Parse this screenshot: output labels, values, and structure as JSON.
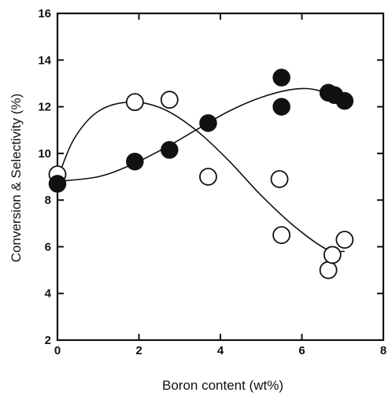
{
  "chart_data": {
    "type": "scatter",
    "title": "",
    "xlabel": "Boron content (wt%)",
    "ylabel": "Conversion & Selectivity (%)",
    "xlim": [
      0,
      8
    ],
    "ylim": [
      2,
      16
    ],
    "xticks": [
      "0",
      "2",
      "4",
      "6",
      "8"
    ],
    "yticks": [
      "2",
      "4",
      "6",
      "8",
      "10",
      "12",
      "14",
      "16"
    ],
    "grid": false,
    "legend": "none",
    "series": [
      {
        "marker": "open-circle",
        "color": "#111111",
        "points": [
          [
            0.0,
            9.1
          ],
          [
            1.9,
            12.2
          ],
          [
            2.75,
            12.3
          ],
          [
            3.7,
            9.0
          ],
          [
            5.45,
            8.9
          ],
          [
            5.5,
            6.5
          ],
          [
            6.65,
            5.0
          ],
          [
            6.75,
            5.65
          ],
          [
            7.05,
            6.3
          ]
        ],
        "fit_curve": [
          [
            0.0,
            8.9
          ],
          [
            0.4,
            10.6
          ],
          [
            1.0,
            11.8
          ],
          [
            1.8,
            12.2
          ],
          [
            2.6,
            11.9
          ],
          [
            3.4,
            11.0
          ],
          [
            4.2,
            9.7
          ],
          [
            5.0,
            8.2
          ],
          [
            5.8,
            6.9
          ],
          [
            6.6,
            5.9
          ],
          [
            7.05,
            5.8
          ]
        ]
      },
      {
        "marker": "filled-circle",
        "color": "#111111",
        "points": [
          [
            0.0,
            8.7
          ],
          [
            1.9,
            9.65
          ],
          [
            2.75,
            10.15
          ],
          [
            3.7,
            11.3
          ],
          [
            5.5,
            13.25
          ],
          [
            5.5,
            12.0
          ],
          [
            6.65,
            12.6
          ],
          [
            6.8,
            12.5
          ],
          [
            7.05,
            12.25
          ]
        ],
        "fit_curve": [
          [
            0.0,
            8.8
          ],
          [
            1.0,
            9.0
          ],
          [
            1.8,
            9.5
          ],
          [
            2.6,
            10.2
          ],
          [
            3.4,
            11.0
          ],
          [
            4.2,
            11.8
          ],
          [
            5.0,
            12.4
          ],
          [
            5.8,
            12.75
          ],
          [
            6.4,
            12.7
          ],
          [
            7.05,
            12.2
          ]
        ]
      }
    ]
  }
}
